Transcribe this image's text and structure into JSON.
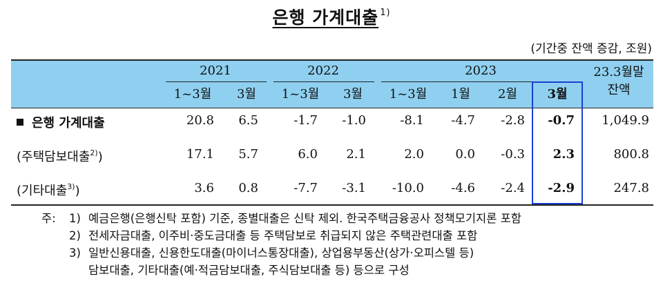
{
  "title": {
    "text": "은행 가계대출",
    "note_ref": "1)"
  },
  "unit": "(기간중 잔액 증감, 조원)",
  "header": {
    "years": [
      "2021",
      "2022",
      "2023"
    ],
    "months": [
      "1~3월",
      "3월",
      "1~3월",
      "3월",
      "1~3월",
      "1월",
      "2월",
      "3월"
    ],
    "balance_line1": "23.3월말",
    "balance_line2": "잔액"
  },
  "rows": [
    {
      "label": "은행 가계대출",
      "note_ref": "",
      "values": [
        "20.8",
        "6.5",
        "-1.7",
        "-1.0",
        "-8.1",
        "-4.7",
        "-2.8",
        "-0.7",
        "1,049.9"
      ]
    },
    {
      "label": "(주택담보대출",
      "note_ref": "2)",
      "close": ")",
      "values": [
        "17.1",
        "5.7",
        "6.0",
        "2.1",
        "2.0",
        "0.0",
        "-0.3",
        "2.3",
        "800.8"
      ]
    },
    {
      "label": "(기타대출",
      "note_ref": "3)",
      "close": ")",
      "values": [
        "3.6",
        "0.8",
        "-7.7",
        "-3.1",
        "-10.0",
        "-4.6",
        "-2.4",
        "-2.9",
        "247.8"
      ]
    }
  ],
  "notes": {
    "prefix": "주:",
    "items": [
      {
        "num": "1)",
        "text": "예금은행(은행신탁 포함) 기준, 종별대출은 신탁 제외. 한국주택금융공사 정책모기지론 포함"
      },
      {
        "num": "2)",
        "text": "전세자금대출, 이주비·중도금대출 등 주택담보로 취급되지 않은 주택관련대출 포함"
      },
      {
        "num": "3)",
        "text": "일반신용대출, 신용한도대출(마이너스통장대출), 상업용부동산(상가·오피스텔 등)"
      },
      {
        "num": "",
        "text": "담보대출, 기타대출(예·적금담보대출, 주식담보대출 등) 등으로 구성"
      }
    ]
  }
}
